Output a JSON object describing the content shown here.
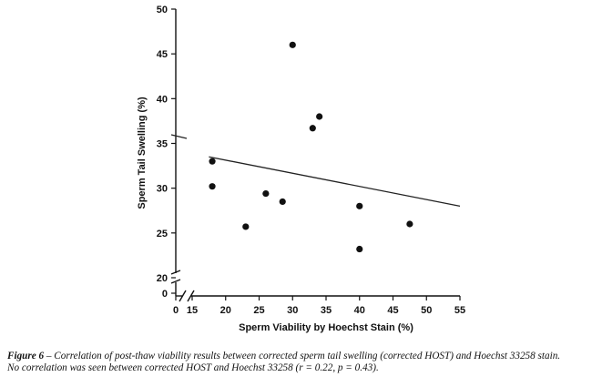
{
  "chart_data": {
    "type": "scatter",
    "xlabel": "Sperm Viability by Hoechst Stain (%)",
    "ylabel": "Sperm Tail Swelling (%)",
    "x_ticks": [
      "0",
      "15",
      "20",
      "25",
      "30",
      "35",
      "40",
      "45",
      "50",
      "55"
    ],
    "y_ticks": [
      "0",
      "20",
      "25",
      "30",
      "35",
      "40",
      "45",
      "50"
    ],
    "xlim": [
      15,
      55
    ],
    "ylim": [
      20,
      50
    ],
    "axis_breaks": true,
    "grid": false,
    "points": [
      {
        "x": 18,
        "y": 33.0
      },
      {
        "x": 18,
        "y": 30.2
      },
      {
        "x": 23,
        "y": 25.7
      },
      {
        "x": 26,
        "y": 29.4
      },
      {
        "x": 28.5,
        "y": 28.5
      },
      {
        "x": 30,
        "y": 46.0
      },
      {
        "x": 33,
        "y": 36.7
      },
      {
        "x": 34,
        "y": 38.0
      },
      {
        "x": 40,
        "y": 28.0
      },
      {
        "x": 40,
        "y": 23.2
      },
      {
        "x": 47.5,
        "y": 26.0
      }
    ],
    "trendline": {
      "x": [
        17.5,
        55
      ],
      "y": [
        33.5,
        28.0
      ]
    }
  },
  "caption": {
    "figure_label": "Figure 6",
    "line1": " – Correlation of post-thaw viability results between corrected sperm tail swelling (corrected HOST) and Hoechst 33258 stain.",
    "line2": "No correlation was seen between corrected HOST and Hoechst 33258 (r = 0.22, p = 0.43)."
  }
}
